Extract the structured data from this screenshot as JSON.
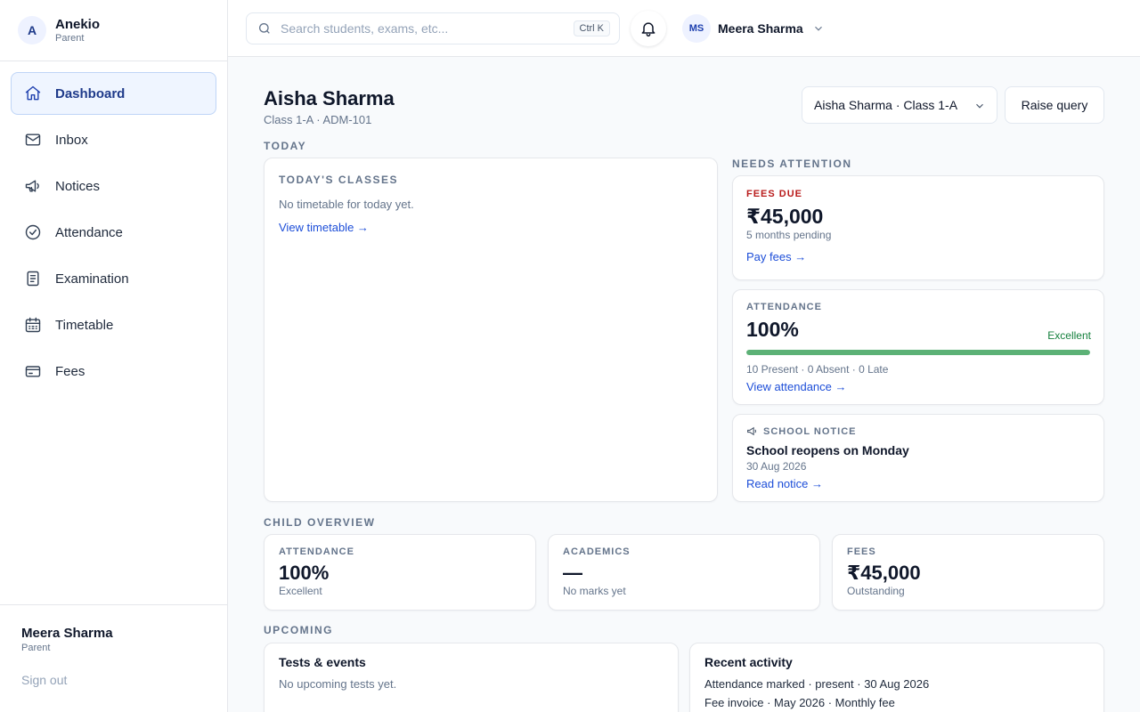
{
  "brand": {
    "initial": "A",
    "name": "Anekio",
    "role": "Parent"
  },
  "sidebar": {
    "items": [
      {
        "label": "Dashboard",
        "icon": "home-icon"
      },
      {
        "label": "Inbox",
        "icon": "mail-icon"
      },
      {
        "label": "Notices",
        "icon": "megaphone-icon"
      },
      {
        "label": "Attendance",
        "icon": "check-circle-icon"
      },
      {
        "label": "Examination",
        "icon": "document-icon"
      },
      {
        "label": "Timetable",
        "icon": "calendar-icon"
      },
      {
        "label": "Fees",
        "icon": "credit-card-icon"
      }
    ],
    "active": "Dashboard"
  },
  "sidebar_footer": {
    "user_name": "Meera Sharma",
    "user_role": "Parent",
    "signout": "Sign out"
  },
  "header": {
    "search_placeholder": "Search students, exams, etc...",
    "shortcut": "Ctrl K",
    "user_initials": "MS",
    "user_name": "Meera Sharma"
  },
  "page": {
    "title": "Aisha Sharma",
    "subtitle": "Class 1-A · ADM-101",
    "child_select": "Aisha Sharma · Class 1-A",
    "raise_query": "Raise query"
  },
  "today": {
    "section": "TODAY",
    "card_label": "TODAY'S CLASSES",
    "empty": "No timetable for today yet.",
    "link": "View timetable →"
  },
  "needs_attention": {
    "section": "NEEDS ATTENTION",
    "fees": {
      "label": "FEES DUE",
      "amount": "₹45,000",
      "sub": "5 months pending",
      "link": "Pay fees →"
    },
    "attendance": {
      "label": "ATTENDANCE",
      "value": "100%",
      "status": "Excellent",
      "progress": 1.0,
      "summary": "10 Present · 0 Absent · 0 Late",
      "link": "View attendance →"
    },
    "notice": {
      "label": "SCHOOL NOTICE",
      "title": "School reopens on Monday",
      "date": "30 Aug 2026",
      "link": "Read notice →"
    }
  },
  "overview": {
    "section": "CHILD OVERVIEW",
    "cards": [
      {
        "label": "ATTENDANCE",
        "value": "100%",
        "sub": "Excellent"
      },
      {
        "label": "ACADEMICS",
        "value": "—",
        "sub": "No marks yet"
      },
      {
        "label": "FEES",
        "value": "₹45,000",
        "sub": "Outstanding"
      }
    ]
  },
  "upcoming": {
    "section": "UPCOMING",
    "tests": {
      "title": "Tests & events",
      "empty": "No upcoming tests yet."
    },
    "activity": {
      "title": "Recent activity",
      "items": [
        "Attendance marked · present · 30 Aug 2026",
        "Fee invoice · May 2026 · Monthly fee"
      ]
    }
  },
  "colors": {
    "accent": "#1d4ed8",
    "danger": "#b91c1c",
    "success": "#15803d",
    "progress": "#5cb176"
  }
}
